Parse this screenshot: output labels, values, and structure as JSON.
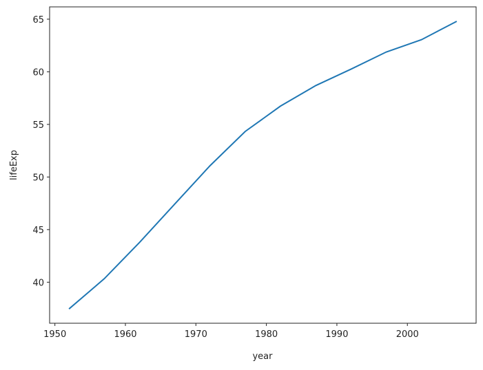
{
  "chart_data": {
    "type": "line",
    "x_label": "year",
    "y_label": "lifeExp",
    "x": [
      1952,
      1957,
      1962,
      1967,
      1972,
      1977,
      1982,
      1987,
      1992,
      1997,
      2002,
      2007
    ],
    "values": [
      37.46,
      40.33,
      43.78,
      47.43,
      51.07,
      54.33,
      56.74,
      58.69,
      60.25,
      61.88,
      63.05,
      64.8
    ],
    "color": "#1f77b4",
    "xlim": [
      1949.25,
      2009.75
    ],
    "xticks": [
      1950,
      1960,
      1970,
      1980,
      1990,
      2000
    ],
    "ylim": [
      36.1,
      66.17
    ],
    "yticks": [
      40,
      45,
      50,
      55,
      60,
      65
    ]
  }
}
